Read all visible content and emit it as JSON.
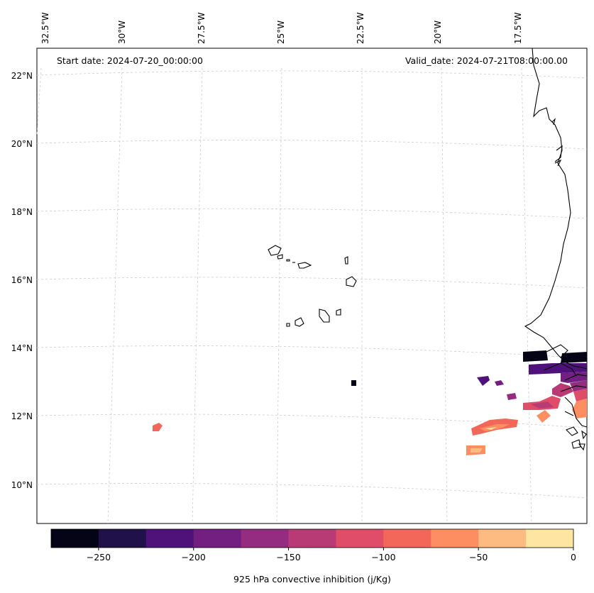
{
  "map": {
    "start_date": "Start date: 2024-07-20_00:00:00",
    "valid_date": "Valid_date: 2024-07-21T08:00:00.00",
    "lon_labels": [
      "32.5°W",
      "30°W",
      "27.5°W",
      "25°W",
      "22.5°W",
      "20°W",
      "17.5°W"
    ],
    "lat_labels": [
      "22°N",
      "20°N",
      "18°N",
      "16°N",
      "14°N",
      "12°N",
      "10°N"
    ],
    "colorbar": {
      "label": "925 hPa convective inhibition (j/Kg)",
      "ticks": [
        "−250",
        "−200",
        "−150",
        "−100",
        "−50",
        "0"
      ],
      "range": [
        -275,
        0
      ],
      "colors": [
        "#050416",
        "#20114b",
        "#4f127b",
        "#731f81",
        "#942c80",
        "#b93b75",
        "#df4d68",
        "#f3675b",
        "#fd8e62",
        "#febb81",
        "#fde6a2"
      ]
    }
  }
}
